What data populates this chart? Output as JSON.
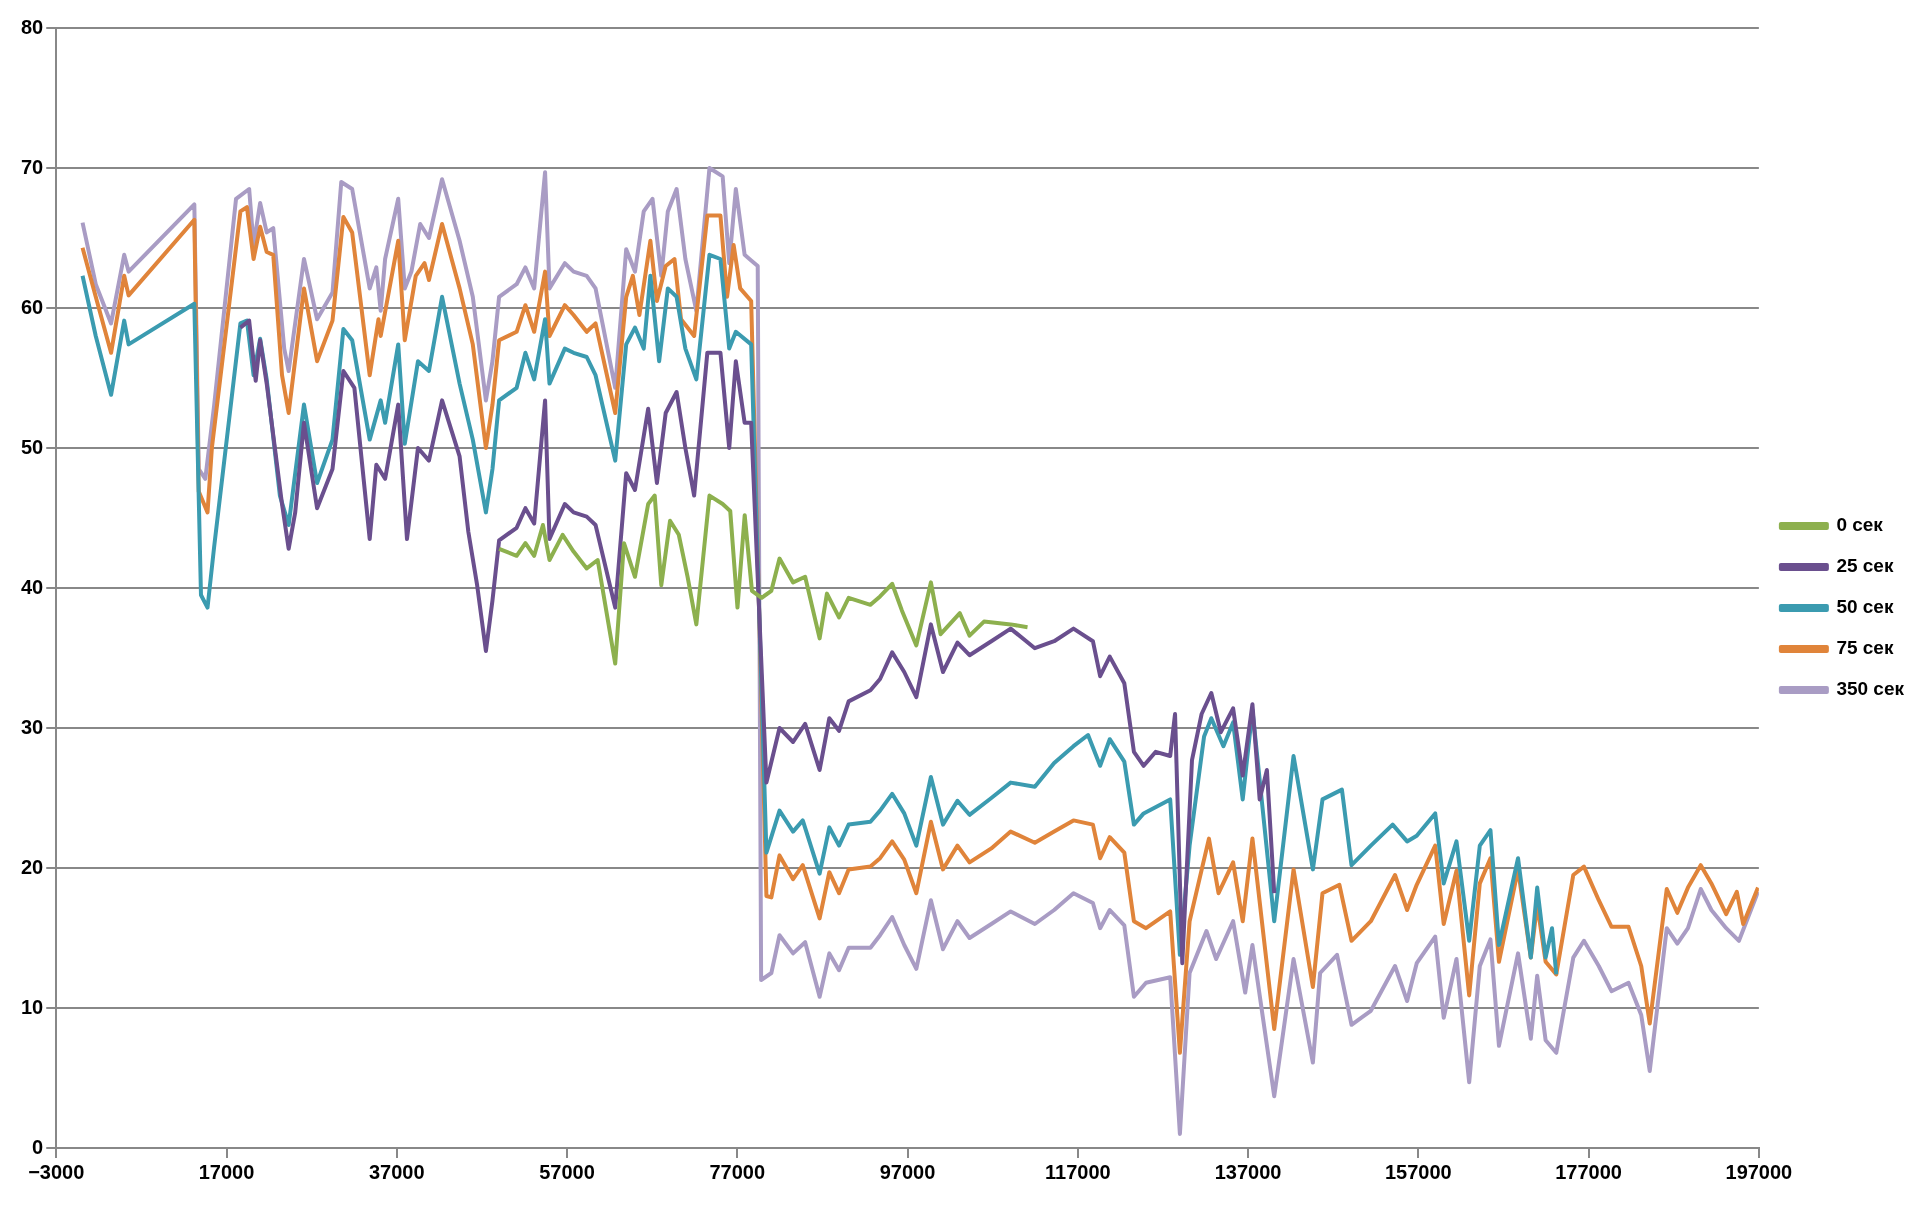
{
  "chart_data": {
    "type": "line",
    "xlim": [
      -3000,
      197000
    ],
    "xticks": [
      {
        "value": -3000,
        "label": "−3000"
      },
      17000,
      37000,
      57000,
      77000,
      97000,
      117000,
      137000,
      157000,
      177000,
      197000
    ],
    "ylim": [
      0,
      80
    ],
    "yticks": [
      0,
      10,
      20,
      30,
      40,
      50,
      60,
      70,
      80
    ],
    "grid": "y",
    "legend": "right",
    "line_style": "solid",
    "series": [
      {
        "name": "0 сек",
        "color": "#8db04e",
        "x": [
          49020,
          51080,
          52110,
          53140,
          54170,
          54940,
          56480,
          57770,
          59310,
          60600,
          62660,
          63690,
          64980,
          66530,
          67300,
          68070,
          69100,
          70130,
          71160,
          72190,
          73730,
          75280,
          76170,
          77020,
          77870,
          78720,
          79860,
          81000,
          81960,
          83550,
          84970,
          86670,
          87530,
          88950,
          90080,
          92640,
          93770,
          95190,
          96330,
          98030,
          99740,
          100880,
          103140,
          104280,
          105980,
          109110,
          111090
        ],
        "values": [
          42.8,
          42.3,
          43.2,
          42.3,
          44.5,
          42.0,
          43.8,
          42.6,
          41.4,
          42.0,
          34.6,
          43.2,
          40.8,
          46.0,
          46.6,
          40.2,
          44.8,
          43.8,
          40.8,
          37.4,
          46.6,
          46.0,
          45.5,
          38.6,
          45.2,
          39.8,
          39.3,
          39.8,
          42.1,
          40.4,
          40.8,
          36.4,
          39.6,
          37.9,
          39.3,
          38.8,
          39.4,
          40.3,
          38.4,
          35.9,
          40.4,
          36.7,
          38.2,
          36.6,
          37.6,
          37.4,
          37.2
        ]
      },
      {
        "name": "25 сек",
        "color": "#6a4f8e",
        "x": [
          18630,
          19660,
          20430,
          20950,
          21720,
          23520,
          24300,
          25070,
          26100,
          27640,
          29450,
          30730,
          32020,
          33820,
          34600,
          35630,
          37170,
          38200,
          39490,
          40780,
          42320,
          44380,
          45410,
          46440,
          47470,
          48240,
          49020,
          51080,
          52110,
          53140,
          54420,
          54940,
          56740,
          57770,
          59310,
          60350,
          62660,
          63950,
          64980,
          66530,
          67560,
          68590,
          69870,
          70900,
          71930,
          73480,
          75020,
          76050,
          76830,
          77860,
          78630,
          80420,
          81960,
          83550,
          84970,
          86670,
          87810,
          88950,
          90080,
          92640,
          93770,
          95190,
          96610,
          98030,
          99740,
          101160,
          102860,
          104280,
          106840,
          109110,
          111950,
          114220,
          116490,
          118770,
          119620,
          120750,
          122460,
          123590,
          124730,
          126150,
          127850,
          128420,
          129270,
          130410,
          131540,
          132680,
          133800,
          135240,
          136370,
          137510,
          138360,
          139210,
          140070
        ],
        "values": [
          58.6,
          59.1,
          54.8,
          57.7,
          54.6,
          46.0,
          42.8,
          45.4,
          51.8,
          45.7,
          48.5,
          55.5,
          54.3,
          43.5,
          48.8,
          47.8,
          53.1,
          43.5,
          50.0,
          49.1,
          53.4,
          49.4,
          44.0,
          40.2,
          35.5,
          39.1,
          43.4,
          44.3,
          45.7,
          44.6,
          53.4,
          43.5,
          46.0,
          45.4,
          45.1,
          44.5,
          38.6,
          48.2,
          47.0,
          52.8,
          47.5,
          52.5,
          54.0,
          50.0,
          46.6,
          56.8,
          56.8,
          50.0,
          56.2,
          51.8,
          51.8,
          26.1,
          30.0,
          29.0,
          30.3,
          27.0,
          30.7,
          29.8,
          31.9,
          32.7,
          33.5,
          35.4,
          34.0,
          32.2,
          37.4,
          34.0,
          36.1,
          35.2,
          36.2,
          37.1,
          35.7,
          36.2,
          37.1,
          36.2,
          33.7,
          35.1,
          33.2,
          28.3,
          27.3,
          28.3,
          28.0,
          31.0,
          13.2,
          27.7,
          31.0,
          32.5,
          29.7,
          31.4,
          26.6,
          31.7,
          24.9,
          27.0,
          18.2
        ]
      },
      {
        "name": "50 сек",
        "color": "#3b9bb0",
        "x": [
          90,
          1640,
          3440,
          4980,
          5500,
          13220,
          14000,
          14770,
          15540,
          18630,
          19400,
          20180,
          20950,
          21720,
          23270,
          24300,
          26100,
          27640,
          29450,
          30730,
          31760,
          33820,
          35110,
          35630,
          37170,
          37940,
          39490,
          40780,
          42320,
          44380,
          45930,
          47470,
          48240,
          49020,
          51080,
          52110,
          53140,
          54420,
          54940,
          56740,
          57770,
          59310,
          60350,
          62660,
          63950,
          64980,
          66010,
          66790,
          67820,
          68840,
          69870,
          70900,
          72190,
          73730,
          75020,
          76050,
          76830,
          78630,
          80420,
          81960,
          83550,
          84690,
          86670,
          87810,
          88950,
          90080,
          92640,
          93770,
          95190,
          96610,
          98030,
          99740,
          101160,
          102860,
          104280,
          106840,
          109110,
          111950,
          114220,
          116490,
          118200,
          119620,
          120750,
          122460,
          123590,
          124730,
          127850,
          128990,
          130130,
          131830,
          132680,
          134100,
          135240,
          136370,
          137510,
          140070,
          142340,
          144610,
          145740,
          148020,
          149150,
          151420,
          153980,
          155680,
          156810,
          158980,
          159980,
          161480,
          162970,
          164220,
          165470,
          166470,
          168710,
          170210,
          170960,
          171950,
          172700,
          173200
        ],
        "values": [
          62.3,
          58.0,
          53.8,
          59.1,
          57.4,
          60.3,
          39.5,
          38.6,
          42.9,
          58.9,
          59.1,
          55.2,
          57.8,
          54.9,
          46.6,
          44.5,
          53.1,
          47.5,
          50.6,
          58.5,
          57.7,
          50.6,
          53.4,
          51.8,
          57.4,
          50.3,
          56.2,
          55.5,
          60.8,
          54.6,
          50.6,
          45.4,
          48.5,
          53.4,
          54.3,
          56.8,
          54.9,
          59.2,
          54.6,
          57.1,
          56.8,
          56.5,
          55.2,
          49.1,
          57.4,
          58.6,
          57.1,
          62.3,
          56.2,
          61.4,
          60.8,
          57.1,
          54.9,
          63.8,
          63.5,
          57.1,
          58.3,
          57.4,
          21.1,
          24.1,
          22.6,
          23.4,
          19.6,
          22.9,
          21.6,
          23.1,
          23.3,
          24.1,
          25.3,
          23.9,
          21.6,
          26.5,
          23.1,
          24.8,
          23.8,
          25.0,
          26.1,
          25.8,
          27.5,
          28.7,
          29.5,
          27.3,
          29.2,
          27.6,
          23.1,
          23.9,
          24.9,
          13.8,
          21.6,
          29.4,
          30.7,
          28.7,
          30.4,
          24.9,
          31.3,
          16.2,
          28.0,
          19.9,
          24.9,
          25.6,
          20.2,
          21.6,
          23.1,
          21.9,
          22.3,
          23.9,
          18.9,
          21.9,
          14.8,
          21.6,
          22.7,
          14.5,
          20.7,
          13.6,
          18.6,
          13.6,
          15.7,
          12.4
        ]
      },
      {
        "name": "75 сек",
        "color": "#e0843a",
        "x": [
          90,
          1640,
          3440,
          4980,
          5500,
          13220,
          13740,
          14770,
          15280,
          18630,
          19400,
          20180,
          20950,
          21720,
          22490,
          23520,
          24300,
          26100,
          27640,
          29450,
          30730,
          31760,
          33820,
          34850,
          35110,
          37170,
          37940,
          39230,
          40260,
          40780,
          42320,
          44380,
          45930,
          47470,
          48240,
          49020,
          51080,
          52110,
          53140,
          54420,
          54940,
          56740,
          57770,
          59310,
          60350,
          62660,
          63950,
          64730,
          65500,
          66790,
          67560,
          68590,
          69620,
          70390,
          71930,
          73480,
          75020,
          75800,
          76570,
          77340,
          78630,
          80420,
          81000,
          81960,
          83550,
          84690,
          86670,
          87810,
          88950,
          90080,
          92640,
          93770,
          95190,
          96610,
          98030,
          99740,
          101160,
          102860,
          104280,
          106840,
          109110,
          111950,
          114220,
          116490,
          118770,
          119620,
          120750,
          122460,
          123590,
          125010,
          127850,
          128990,
          130130,
          132400,
          133530,
          135240,
          136370,
          137510,
          140070,
          142340,
          144610,
          145740,
          147730,
          149150,
          151420,
          154260,
          155680,
          156810,
          158980,
          159980,
          161480,
          162970,
          164220,
          165470,
          166470,
          168710,
          170210,
          170960,
          171950,
          173200,
          175200,
          176450,
          178190,
          179690,
          181690,
          183180,
          184180,
          186180,
          187420,
          188670,
          190170,
          191420,
          193160,
          194410,
          195160,
          196900
        ],
        "values": [
          64.3,
          60.8,
          56.8,
          62.3,
          60.9,
          66.3,
          46.9,
          45.4,
          50.0,
          66.9,
          67.2,
          63.5,
          65.8,
          64.0,
          63.8,
          55.2,
          52.5,
          61.4,
          56.2,
          59.1,
          66.5,
          65.4,
          55.2,
          59.2,
          58.0,
          64.8,
          57.7,
          62.3,
          63.2,
          62.0,
          66.0,
          61.4,
          57.4,
          50.0,
          53.1,
          57.7,
          58.3,
          60.2,
          58.3,
          62.6,
          58.0,
          60.2,
          59.5,
          58.3,
          58.9,
          52.5,
          60.8,
          62.3,
          59.5,
          64.8,
          60.5,
          63.0,
          63.5,
          59.2,
          58.0,
          66.6,
          66.6,
          60.8,
          64.5,
          61.4,
          60.5,
          18.0,
          17.9,
          20.9,
          19.2,
          20.2,
          16.4,
          19.7,
          18.2,
          19.9,
          20.1,
          20.7,
          21.9,
          20.6,
          18.2,
          23.3,
          19.9,
          21.6,
          20.4,
          21.4,
          22.6,
          21.8,
          22.6,
          23.4,
          23.1,
          20.7,
          22.2,
          21.1,
          16.2,
          15.7,
          16.9,
          6.8,
          16.2,
          22.1,
          18.2,
          20.4,
          16.2,
          22.1,
          8.5,
          19.9,
          11.5,
          18.2,
          18.8,
          14.8,
          16.2,
          19.5,
          17.0,
          18.8,
          21.6,
          16.0,
          19.8,
          10.9,
          18.9,
          20.7,
          13.3,
          19.9,
          13.6,
          17.4,
          13.3,
          12.4,
          19.5,
          20.1,
          17.7,
          15.8,
          15.8,
          13.0,
          8.9,
          18.5,
          16.8,
          18.6,
          20.2,
          18.9,
          16.7,
          18.3,
          16.0,
          18.6
        ]
      },
      {
        "name": "350 сек",
        "color": "#a99cc4",
        "x": [
          90,
          1640,
          3440,
          4980,
          5500,
          13220,
          13740,
          14510,
          15540,
          18120,
          19660,
          20180,
          20950,
          21720,
          22490,
          23780,
          24300,
          26100,
          27640,
          29450,
          30480,
          31760,
          33820,
          34600,
          35110,
          35630,
          37170,
          37940,
          38720,
          39750,
          40780,
          42320,
          44380,
          45930,
          47470,
          48240,
          49020,
          51080,
          52110,
          53140,
          54420,
          54940,
          56740,
          57770,
          59310,
          60350,
          62660,
          63950,
          64980,
          66010,
          67040,
          68070,
          68840,
          69870,
          70900,
          72190,
          73730,
          75280,
          76050,
          76830,
          77860,
          78630,
          79400,
          79800,
          81000,
          81960,
          83550,
          84970,
          86670,
          87810,
          88950,
          90080,
          92640,
          93770,
          95190,
          96610,
          98030,
          99740,
          101160,
          102860,
          104280,
          106840,
          109110,
          111950,
          114220,
          116490,
          118770,
          119620,
          120750,
          122460,
          123590,
          125010,
          127850,
          128990,
          130130,
          132110,
          133250,
          135240,
          136660,
          137510,
          140070,
          142340,
          144610,
          145460,
          147450,
          149150,
          151420,
          154260,
          155680,
          156810,
          158980,
          159980,
          161480,
          162970,
          164220,
          165470,
          166470,
          168710,
          170210,
          170960,
          171950,
          173200,
          175200,
          176450,
          178190,
          179690,
          181690,
          183180,
          184180,
          186180,
          187420,
          188670,
          190170,
          191420,
          193160,
          194660,
          196900
        ],
        "values": [
          66.1,
          61.7,
          58.9,
          63.8,
          62.6,
          67.4,
          48.5,
          47.8,
          53.0,
          67.8,
          68.5,
          64.5,
          67.5,
          65.4,
          65.7,
          57.1,
          55.5,
          63.5,
          59.2,
          61.1,
          69.0,
          68.5,
          61.4,
          62.9,
          59.8,
          63.5,
          67.8,
          61.4,
          62.6,
          66.0,
          65.0,
          69.2,
          64.8,
          60.8,
          53.4,
          56.2,
          60.8,
          61.7,
          62.9,
          61.4,
          69.7,
          61.4,
          63.2,
          62.6,
          62.3,
          61.4,
          54.3,
          64.2,
          62.6,
          66.9,
          67.8,
          62.3,
          66.9,
          68.5,
          63.5,
          59.8,
          70.0,
          69.4,
          63.2,
          68.5,
          63.8,
          63.4,
          63.0,
          12.0,
          12.5,
          15.2,
          13.9,
          14.7,
          10.8,
          13.9,
          12.7,
          14.3,
          14.3,
          15.2,
          16.5,
          14.5,
          12.8,
          17.7,
          14.2,
          16.2,
          15.0,
          16.0,
          16.9,
          16.0,
          17.0,
          18.2,
          17.5,
          15.7,
          17.0,
          15.9,
          10.8,
          11.8,
          12.2,
          1.0,
          12.5,
          15.5,
          13.5,
          16.2,
          11.1,
          14.5,
          3.7,
          13.5,
          6.1,
          12.5,
          13.8,
          8.8,
          9.8,
          13.0,
          10.5,
          13.2,
          15.1,
          9.3,
          13.5,
          4.7,
          13.0,
          14.9,
          7.3,
          13.9,
          7.8,
          12.3,
          7.7,
          6.8,
          13.6,
          14.8,
          13.0,
          11.2,
          11.8,
          9.5,
          5.5,
          15.7,
          14.6,
          15.7,
          18.5,
          17.0,
          15.7,
          14.8,
          18.3
        ]
      }
    ]
  }
}
